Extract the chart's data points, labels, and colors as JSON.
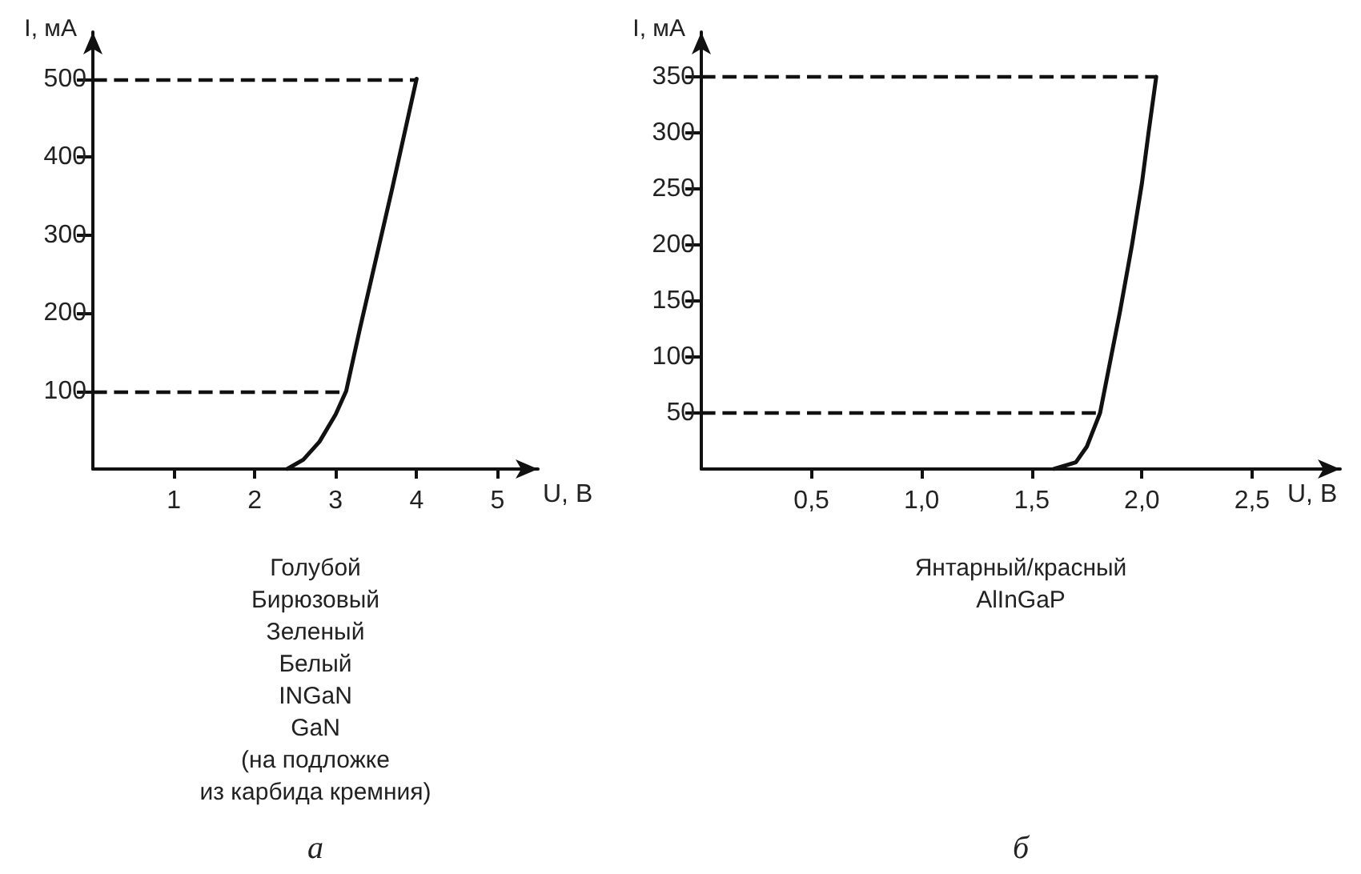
{
  "chart_data": [
    {
      "type": "line",
      "xlabel": "U, В",
      "ylabel": "I, мА",
      "xlim": [
        0,
        5.5
      ],
      "ylim": [
        0,
        560
      ],
      "xticks": [
        1,
        2,
        3,
        4,
        5
      ],
      "yticks": [
        100,
        200,
        300,
        400,
        500
      ],
      "grid": false,
      "marker": "none",
      "line_style": "solid",
      "x": [
        2.4,
        2.6,
        2.8,
        3.0,
        3.13,
        3.3,
        3.5,
        3.7,
        3.85,
        4.0
      ],
      "series": [
        {
          "color": "#111111",
          "values": [
            0,
            12,
            35,
            70,
            100,
            180,
            270,
            360,
            430,
            500
          ]
        }
      ],
      "ref_lines": [
        {
          "axis": "y",
          "value": 500,
          "label": null,
          "color": "#111111",
          "line_style": "dashed"
        },
        {
          "axis": "y",
          "value": 100,
          "label": null,
          "color": "#111111",
          "line_style": "dashed"
        }
      ],
      "annotations": [
        "Голубой\nБирюзовый\nЗеленый\nБелый\nINGaN\nGaN\n(на подложке\nиз карбида кремния)",
        "а"
      ]
    },
    {
      "type": "line",
      "xlabel": "U, В",
      "ylabel": "I, мА",
      "xlim": [
        0,
        2.9
      ],
      "ylim": [
        0,
        390
      ],
      "xticks": [
        {
          "value": 0.5,
          "label": "0,5"
        },
        {
          "value": 1.0,
          "label": "1,0"
        },
        {
          "value": 1.5,
          "label": "1,5"
        },
        {
          "value": 2.0,
          "label": "2,0"
        },
        {
          "value": 2.5,
          "label": "2,5"
        }
      ],
      "yticks": [
        50,
        100,
        150,
        200,
        250,
        300,
        350
      ],
      "grid": false,
      "marker": "none",
      "line_style": "solid",
      "x": [
        1.6,
        1.7,
        1.75,
        1.81,
        1.86,
        1.9,
        1.955,
        2.0,
        2.03,
        2.065
      ],
      "series": [
        {
          "color": "#111111",
          "values": [
            0,
            6,
            20,
            50,
            100,
            140,
            200,
            255,
            300,
            350
          ]
        }
      ],
      "ref_lines": [
        {
          "axis": "y",
          "value": 350,
          "label": null,
          "color": "#111111",
          "line_style": "dashed"
        },
        {
          "axis": "y",
          "value": 50,
          "label": null,
          "color": "#111111",
          "line_style": "dashed"
        }
      ],
      "annotations": [
        "Янтарный/красный\nAlInGaP",
        "б"
      ]
    }
  ]
}
